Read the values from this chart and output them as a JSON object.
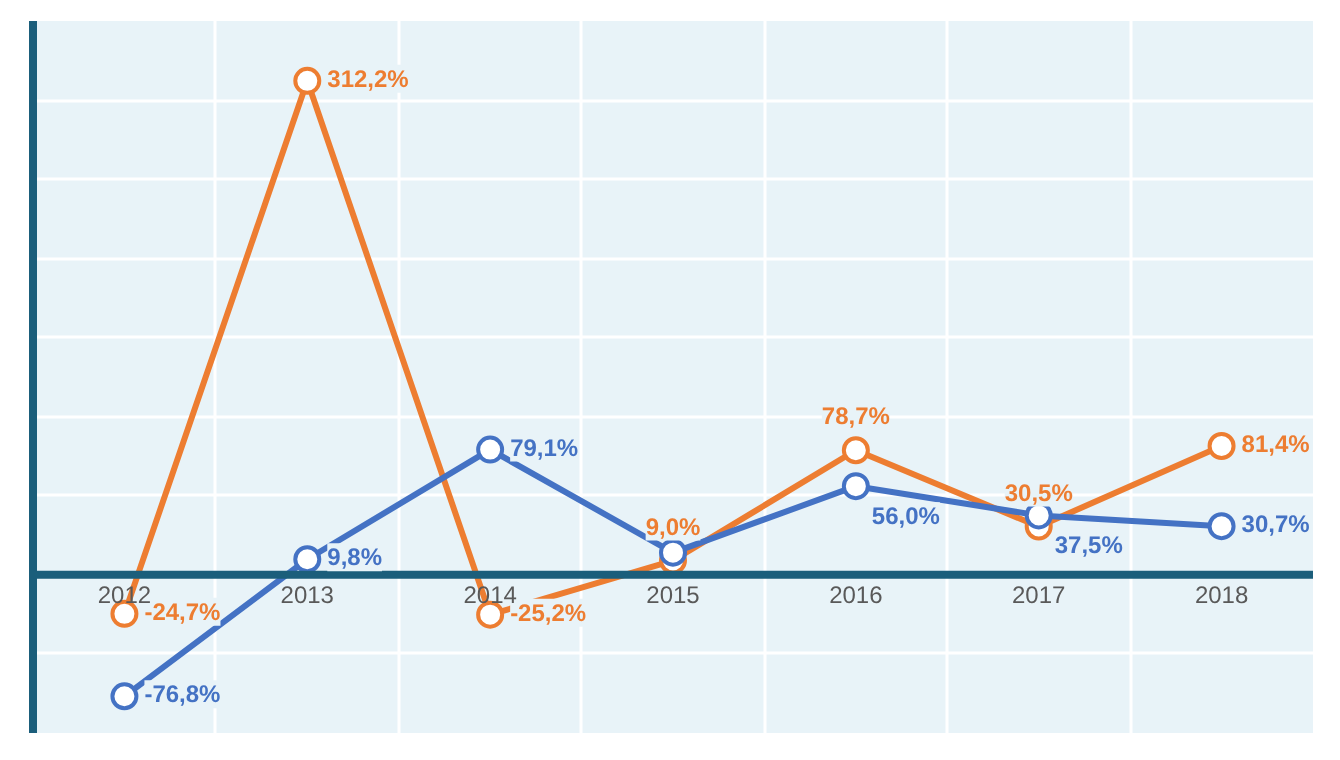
{
  "chart_data": {
    "type": "line",
    "categories": [
      "2012",
      "2013",
      "2014",
      "2015",
      "2016",
      "2017",
      "2018"
    ],
    "series": [
      {
        "color": "#4472c4",
        "values": [
          -76.8,
          9.8,
          79.1,
          14,
          56.0,
          37.5,
          30.7
        ],
        "value_labels": [
          "-76,8%",
          "9,8%",
          "79,1%",
          null,
          "56,0%",
          "37,5%",
          "30,7%"
        ]
      },
      {
        "color": "#ed7d31",
        "values": [
          -24.7,
          312.2,
          -25.2,
          9.0,
          78.7,
          30.5,
          81.4
        ],
        "value_labels": [
          "-24,7%",
          "312,2%",
          "-25,2%",
          "9,0%",
          "78,7%",
          "30,5%",
          "81,4%"
        ]
      }
    ],
    "ylim": [
      -100,
      350
    ],
    "yticks": [
      {
        "value": -100,
        "label": null
      },
      {
        "value": -50,
        "label": null
      },
      {
        "value": 0,
        "label": null
      },
      {
        "value": 50,
        "label": null
      },
      {
        "value": 100,
        "label": null
      },
      {
        "value": 150,
        "label": null
      },
      {
        "value": 200,
        "label": null
      },
      {
        "value": 250,
        "label": null
      },
      {
        "value": 300,
        "label": null
      },
      {
        "value": 350,
        "label": null
      }
    ],
    "tick_labels": "x",
    "grid": true,
    "marker": "circle",
    "line_style": "solid"
  }
}
